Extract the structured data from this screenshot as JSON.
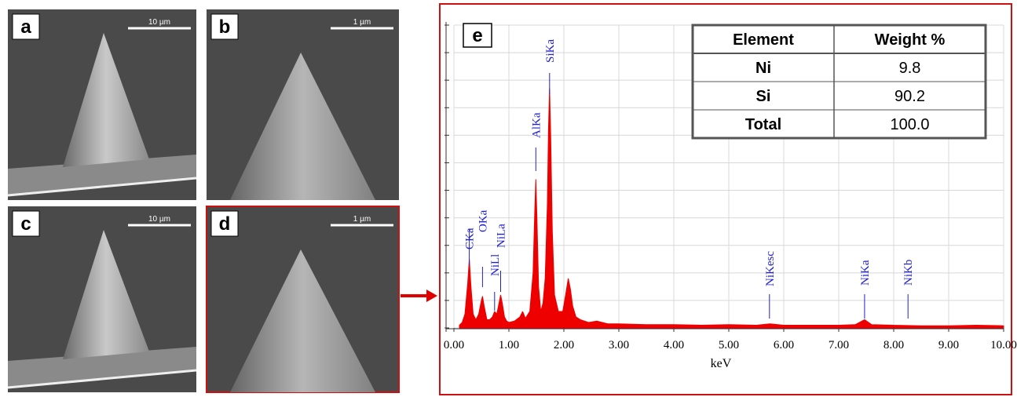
{
  "panels": [
    {
      "label": "a",
      "scale": "10 µm"
    },
    {
      "label": "b",
      "scale": "1 µm"
    },
    {
      "label": "c",
      "scale": "10 µm"
    },
    {
      "label": "d",
      "scale": "1 µm"
    }
  ],
  "chart_data": {
    "type": "area",
    "label": "e",
    "x_label": "keV",
    "xlim": [
      0,
      10
    ],
    "xticks": [
      {
        "value": 0,
        "label": "0.00"
      },
      {
        "value": 1,
        "label": "1.00"
      },
      {
        "value": 2,
        "label": "2.00"
      },
      {
        "value": 3,
        "label": "3.00"
      },
      {
        "value": 4,
        "label": "4.00"
      },
      {
        "value": 5,
        "label": "5.00"
      },
      {
        "value": 6,
        "label": "6.00"
      },
      {
        "value": 7,
        "label": "7.00"
      },
      {
        "value": 8,
        "label": "8.00"
      },
      {
        "value": 9,
        "label": "9.00"
      },
      {
        "value": 10,
        "label": "10.00"
      }
    ],
    "ylim": [
      0,
      11
    ],
    "yticks": [
      0,
      1,
      2,
      3,
      4,
      5,
      6,
      7,
      8,
      9,
      10,
      11
    ],
    "grid": true,
    "x": [
      0.1,
      0.15,
      0.2,
      0.25,
      0.28,
      0.31,
      0.35,
      0.4,
      0.45,
      0.5,
      0.52,
      0.55,
      0.6,
      0.65,
      0.7,
      0.74,
      0.78,
      0.82,
      0.85,
      0.88,
      0.92,
      0.96,
      1.0,
      1.1,
      1.2,
      1.25,
      1.3,
      1.38,
      1.44,
      1.47,
      1.49,
      1.51,
      1.54,
      1.58,
      1.62,
      1.66,
      1.7,
      1.72,
      1.74,
      1.76,
      1.79,
      1.83,
      1.9,
      1.98,
      2.04,
      2.08,
      2.12,
      2.16,
      2.22,
      2.3,
      2.45,
      2.6,
      2.8,
      3.0,
      3.5,
      4.0,
      4.5,
      5.0,
      5.5,
      5.75,
      6.0,
      6.5,
      7.0,
      7.3,
      7.47,
      7.6,
      8.0,
      8.5,
      9.0,
      9.5,
      10.0
    ],
    "series": [
      {
        "color": "#ee0000",
        "values": [
          0.1,
          0.2,
          0.5,
          1.6,
          2.5,
          1.5,
          0.5,
          0.3,
          0.5,
          1.0,
          1.15,
          0.8,
          0.3,
          0.3,
          0.4,
          0.6,
          0.5,
          0.9,
          1.2,
          0.9,
          0.4,
          0.25,
          0.2,
          0.25,
          0.4,
          0.6,
          0.35,
          0.6,
          2.0,
          4.2,
          5.4,
          4.0,
          1.5,
          0.6,
          0.9,
          1.8,
          4.5,
          7.2,
          8.7,
          7.0,
          3.5,
          1.2,
          0.6,
          0.6,
          1.3,
          1.8,
          1.4,
          0.8,
          0.4,
          0.3,
          0.2,
          0.25,
          0.15,
          0.15,
          0.12,
          0.12,
          0.1,
          0.12,
          0.1,
          0.15,
          0.1,
          0.1,
          0.1,
          0.12,
          0.3,
          0.12,
          0.1,
          0.08,
          0.08,
          0.1,
          0.08
        ]
      }
    ],
    "peaks": [
      {
        "text": "CKa",
        "x": 0.28
      },
      {
        "text": "OKa",
        "x": 0.52
      },
      {
        "text": "NiLl",
        "x": 0.74
      },
      {
        "text": "NiLa",
        "x": 0.85
      },
      {
        "text": "AlKa",
        "x": 1.49
      },
      {
        "text": "SiKa",
        "x": 1.74
      },
      {
        "text": "NiKesc",
        "x": 5.74
      },
      {
        "text": "NiKa",
        "x": 7.47
      },
      {
        "text": "NiKb",
        "x": 8.26
      }
    ],
    "table": {
      "columns": [
        "Element",
        "Weight %"
      ],
      "rows": [
        [
          "Ni",
          "9.8"
        ],
        [
          "Si",
          "90.2"
        ],
        [
          "Total",
          "100.0"
        ]
      ]
    }
  }
}
